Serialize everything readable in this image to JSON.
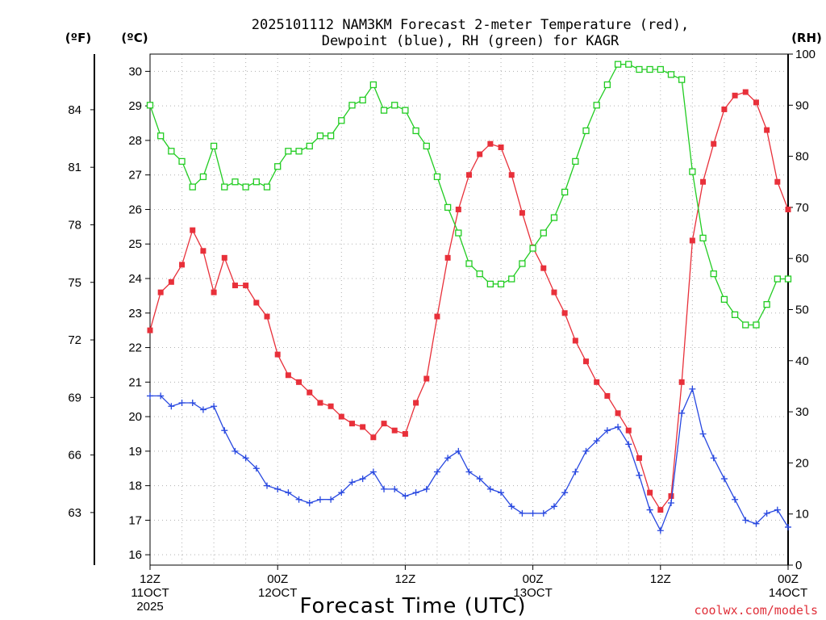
{
  "chart_data": {
    "type": "line",
    "title_line1": "2025101112 NAM3KM Forecast 2-meter Temperature (red),",
    "title_line2": "Dewpoint (blue), RH (green) for KAGR",
    "xlabel": "Forecast Time (UTC)",
    "credit": "coolwx.com/models",
    "units": {
      "fahrenheit": "(ºF)",
      "celsius": "(ºC)",
      "rh": "(RH)"
    },
    "x_range_hours": [
      0,
      60
    ],
    "celsius_range": [
      15.7,
      30.5
    ],
    "rh_range": [
      0,
      100
    ],
    "celsius_ticks": [
      "16",
      "17",
      "18",
      "19",
      "20",
      "21",
      "22",
      "23",
      "24",
      "25",
      "26",
      "27",
      "28",
      "29",
      "30"
    ],
    "fahrenheit_ticks": [
      "63",
      "66",
      "69",
      "72",
      "75",
      "78",
      "81",
      "84"
    ],
    "rh_ticks": [
      "0",
      "10",
      "20",
      "30",
      "40",
      "50",
      "60",
      "70",
      "80",
      "90",
      "100"
    ],
    "x_ticks": [
      {
        "hour": 0,
        "line1": "12Z",
        "line2": "11OCT",
        "line3": "2025"
      },
      {
        "hour": 12,
        "line1": "00Z",
        "line2": "12OCT",
        "line3": ""
      },
      {
        "hour": 24,
        "line1": "12Z",
        "line2": "",
        "line3": ""
      },
      {
        "hour": 36,
        "line1": "00Z",
        "line2": "13OCT",
        "line3": ""
      },
      {
        "hour": 48,
        "line1": "12Z",
        "line2": "",
        "line3": ""
      },
      {
        "hour": 60,
        "line1": "00Z",
        "line2": "14OCT",
        "line3": ""
      }
    ],
    "series": [
      {
        "name": "2-meter Temperature (°C)",
        "color": "#e8303a",
        "axis": "celsius",
        "marker": "filled-square",
        "values": [
          22.5,
          23.6,
          23.9,
          24.4,
          25.4,
          24.8,
          23.6,
          24.6,
          23.8,
          23.8,
          23.3,
          22.9,
          21.8,
          21.2,
          21.0,
          20.7,
          20.4,
          20.3,
          20.0,
          19.8,
          19.7,
          19.4,
          19.8,
          19.6,
          19.5,
          20.4,
          21.1,
          22.9,
          24.6,
          26.0,
          27.0,
          27.6,
          27.9,
          27.8,
          27.0,
          25.9,
          24.9,
          24.3,
          23.6,
          23.0,
          22.2,
          21.6,
          21.0,
          20.6,
          20.1,
          19.6,
          18.8,
          17.8,
          17.3,
          17.7,
          21.0,
          25.1,
          26.8,
          27.9,
          28.9,
          29.3,
          29.4,
          29.1,
          28.3,
          26.8,
          26.0
        ]
      },
      {
        "name": "Dewpoint (°C)",
        "color": "#2848e0",
        "axis": "celsius",
        "marker": "plus",
        "values": [
          20.6,
          20.6,
          20.3,
          20.4,
          20.4,
          20.2,
          20.3,
          19.6,
          19.0,
          18.8,
          18.5,
          18.0,
          17.9,
          17.8,
          17.6,
          17.5,
          17.6,
          17.6,
          17.8,
          18.1,
          18.2,
          18.4,
          17.9,
          17.9,
          17.7,
          17.8,
          17.9,
          18.4,
          18.8,
          19.0,
          18.4,
          18.2,
          17.9,
          17.8,
          17.4,
          17.2,
          17.2,
          17.2,
          17.4,
          17.8,
          18.4,
          19.0,
          19.3,
          19.6,
          19.7,
          19.2,
          18.3,
          17.3,
          16.7,
          17.5,
          20.1,
          20.8,
          19.5,
          18.8,
          18.2,
          17.6,
          17.0,
          16.9,
          17.2,
          17.3,
          16.8
        ]
      },
      {
        "name": "RH (%)",
        "color": "#22cc22",
        "axis": "rh",
        "marker": "open-square",
        "values": [
          90,
          84,
          81,
          79,
          74,
          76,
          82,
          74,
          75,
          74,
          75,
          74,
          78,
          81,
          81,
          82,
          84,
          84,
          87,
          90,
          91,
          94,
          89,
          90,
          89,
          85,
          82,
          76,
          70,
          65,
          59,
          57,
          55,
          55,
          56,
          59,
          62,
          65,
          68,
          73,
          79,
          85,
          90,
          94,
          98,
          98,
          97,
          97,
          97,
          96,
          95,
          77,
          64,
          57,
          52,
          49,
          47,
          47,
          51,
          56,
          56
        ]
      }
    ]
  }
}
